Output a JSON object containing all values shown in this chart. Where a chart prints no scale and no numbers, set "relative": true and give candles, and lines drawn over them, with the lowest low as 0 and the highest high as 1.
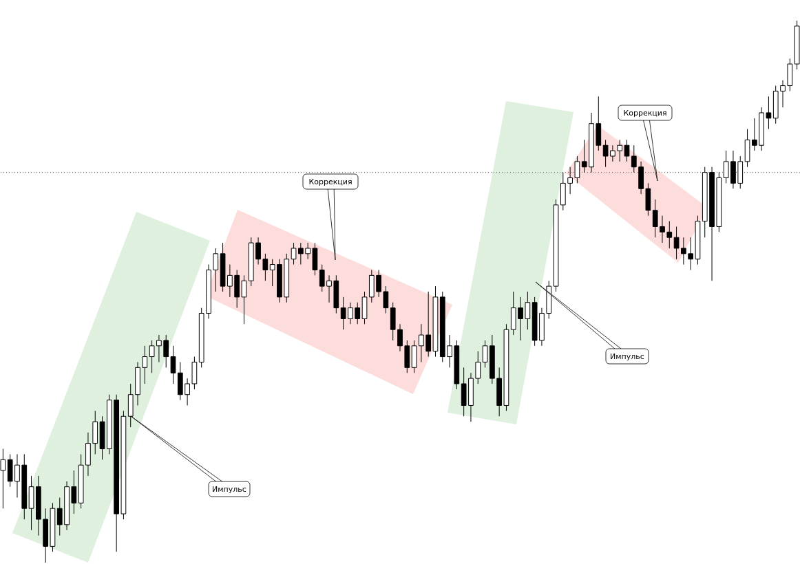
{
  "chart_data": {
    "type": "candlestick",
    "relative": true,
    "tick_labels": false,
    "categories": [
      null,
      null,
      null,
      null,
      null,
      null,
      null,
      null,
      null,
      null,
      null,
      null,
      null,
      null,
      null,
      null,
      null,
      null,
      null,
      null,
      null,
      null,
      null,
      null,
      null,
      null,
      null,
      null,
      null,
      null,
      null,
      null,
      null,
      null,
      null,
      null,
      null,
      null,
      null,
      null,
      null,
      null,
      null,
      null,
      null,
      null,
      null,
      null,
      null,
      null,
      null,
      null,
      null,
      null,
      null,
      null,
      null,
      null,
      null,
      null,
      null,
      null,
      null,
      null,
      null,
      null,
      null,
      null,
      null,
      null,
      null,
      null,
      null,
      null,
      null,
      null,
      null,
      null,
      null,
      null,
      null,
      null,
      null,
      null,
      null,
      null,
      null,
      null,
      null,
      null,
      null,
      null,
      null,
      null,
      null,
      null,
      null,
      null,
      null,
      null,
      null,
      null,
      null,
      null,
      null,
      null,
      null,
      null,
      null,
      null,
      null,
      null,
      null
    ],
    "ohlc": [
      [
        0.17,
        0.21,
        0.1,
        0.19
      ],
      [
        0.19,
        0.2,
        0.14,
        0.15
      ],
      [
        0.15,
        0.2,
        0.12,
        0.18
      ],
      [
        0.18,
        0.2,
        0.08,
        0.1
      ],
      [
        0.1,
        0.16,
        0.06,
        0.14
      ],
      [
        0.14,
        0.16,
        0.05,
        0.08
      ],
      [
        0.08,
        0.1,
        0.0,
        0.03
      ],
      [
        0.03,
        0.11,
        0.02,
        0.1
      ],
      [
        0.1,
        0.12,
        0.05,
        0.07
      ],
      [
        0.07,
        0.15,
        0.06,
        0.14
      ],
      [
        0.14,
        0.17,
        0.09,
        0.11
      ],
      [
        0.11,
        0.2,
        0.1,
        0.18
      ],
      [
        0.18,
        0.24,
        0.16,
        0.22
      ],
      [
        0.22,
        0.28,
        0.2,
        0.26
      ],
      [
        0.26,
        0.27,
        0.19,
        0.21
      ],
      [
        0.21,
        0.31,
        0.2,
        0.3
      ],
      [
        0.3,
        0.31,
        0.02,
        0.09
      ],
      [
        0.09,
        0.28,
        0.08,
        0.27
      ],
      [
        0.27,
        0.33,
        0.25,
        0.31
      ],
      [
        0.31,
        0.37,
        0.29,
        0.36
      ],
      [
        0.36,
        0.4,
        0.33,
        0.38
      ],
      [
        0.38,
        0.41,
        0.35,
        0.4
      ],
      [
        0.4,
        0.42,
        0.37,
        0.41
      ],
      [
        0.41,
        0.42,
        0.36,
        0.38
      ],
      [
        0.38,
        0.4,
        0.33,
        0.35
      ],
      [
        0.35,
        0.37,
        0.3,
        0.31
      ],
      [
        0.31,
        0.34,
        0.29,
        0.33
      ],
      [
        0.33,
        0.38,
        0.32,
        0.37
      ],
      [
        0.37,
        0.47,
        0.36,
        0.46
      ],
      [
        0.46,
        0.55,
        0.45,
        0.54
      ],
      [
        0.54,
        0.58,
        0.5,
        0.57
      ],
      [
        0.57,
        0.59,
        0.5,
        0.51
      ],
      [
        0.51,
        0.55,
        0.49,
        0.53
      ],
      [
        0.53,
        0.54,
        0.47,
        0.49
      ],
      [
        0.49,
        0.53,
        0.44,
        0.52
      ],
      [
        0.52,
        0.6,
        0.51,
        0.59
      ],
      [
        0.59,
        0.6,
        0.55,
        0.56
      ],
      [
        0.56,
        0.57,
        0.52,
        0.54
      ],
      [
        0.54,
        0.56,
        0.51,
        0.55
      ],
      [
        0.55,
        0.56,
        0.48,
        0.49
      ],
      [
        0.49,
        0.57,
        0.48,
        0.56
      ],
      [
        0.56,
        0.59,
        0.55,
        0.58
      ],
      [
        0.58,
        0.59,
        0.55,
        0.57
      ],
      [
        0.57,
        0.59,
        0.56,
        0.58
      ],
      [
        0.58,
        0.59,
        0.53,
        0.54
      ],
      [
        0.54,
        0.55,
        0.5,
        0.51
      ],
      [
        0.51,
        0.53,
        0.48,
        0.52
      ],
      [
        0.52,
        0.53,
        0.46,
        0.47
      ],
      [
        0.47,
        0.49,
        0.43,
        0.45
      ],
      [
        0.45,
        0.48,
        0.44,
        0.47
      ],
      [
        0.47,
        0.48,
        0.44,
        0.45
      ],
      [
        0.45,
        0.5,
        0.44,
        0.49
      ],
      [
        0.49,
        0.54,
        0.48,
        0.53
      ],
      [
        0.53,
        0.54,
        0.49,
        0.5
      ],
      [
        0.5,
        0.51,
        0.46,
        0.47
      ],
      [
        0.47,
        0.48,
        0.41,
        0.43
      ],
      [
        0.43,
        0.44,
        0.39,
        0.4
      ],
      [
        0.4,
        0.41,
        0.35,
        0.36
      ],
      [
        0.36,
        0.41,
        0.35,
        0.4
      ],
      [
        0.4,
        0.44,
        0.37,
        0.42
      ],
      [
        0.42,
        0.5,
        0.38,
        0.39
      ],
      [
        0.39,
        0.51,
        0.38,
        0.49
      ],
      [
        0.49,
        0.5,
        0.37,
        0.38
      ],
      [
        0.38,
        0.42,
        0.36,
        0.4
      ],
      [
        0.4,
        0.41,
        0.32,
        0.33
      ],
      [
        0.33,
        0.36,
        0.27,
        0.29
      ],
      [
        0.29,
        0.35,
        0.26,
        0.34
      ],
      [
        0.34,
        0.39,
        0.33,
        0.37
      ],
      [
        0.37,
        0.41,
        0.36,
        0.4
      ],
      [
        0.4,
        0.42,
        0.33,
        0.34
      ],
      [
        0.34,
        0.36,
        0.27,
        0.29
      ],
      [
        0.29,
        0.44,
        0.28,
        0.43
      ],
      [
        0.43,
        0.5,
        0.42,
        0.47
      ],
      [
        0.47,
        0.49,
        0.41,
        0.45
      ],
      [
        0.45,
        0.5,
        0.43,
        0.48
      ],
      [
        0.48,
        0.49,
        0.4,
        0.41
      ],
      [
        0.41,
        0.47,
        0.4,
        0.46
      ],
      [
        0.46,
        0.52,
        0.45,
        0.51
      ],
      [
        0.51,
        0.67,
        0.5,
        0.66
      ],
      [
        0.66,
        0.72,
        0.65,
        0.7
      ],
      [
        0.7,
        0.73,
        0.68,
        0.71
      ],
      [
        0.71,
        0.75,
        0.7,
        0.74
      ],
      [
        0.74,
        0.78,
        0.72,
        0.73
      ],
      [
        0.73,
        0.83,
        0.72,
        0.81
      ],
      [
        0.81,
        0.86,
        0.76,
        0.77
      ],
      [
        0.77,
        0.78,
        0.73,
        0.75
      ],
      [
        0.75,
        0.77,
        0.74,
        0.76
      ],
      [
        0.76,
        0.78,
        0.74,
        0.77
      ],
      [
        0.77,
        0.78,
        0.74,
        0.75
      ],
      [
        0.75,
        0.77,
        0.72,
        0.73
      ],
      [
        0.73,
        0.74,
        0.68,
        0.69
      ],
      [
        0.69,
        0.7,
        0.64,
        0.65
      ],
      [
        0.65,
        0.67,
        0.6,
        0.62
      ],
      [
        0.62,
        0.64,
        0.59,
        0.61
      ],
      [
        0.61,
        0.63,
        0.58,
        0.6
      ],
      [
        0.6,
        0.62,
        0.56,
        0.58
      ],
      [
        0.58,
        0.6,
        0.55,
        0.57
      ],
      [
        0.57,
        0.6,
        0.54,
        0.56
      ],
      [
        0.56,
        0.64,
        0.55,
        0.63
      ],
      [
        0.63,
        0.73,
        0.6,
        0.72
      ],
      [
        0.72,
        0.73,
        0.52,
        0.62
      ],
      [
        0.62,
        0.72,
        0.61,
        0.71
      ],
      [
        0.71,
        0.76,
        0.7,
        0.74
      ],
      [
        0.74,
        0.76,
        0.69,
        0.7
      ],
      [
        0.7,
        0.75,
        0.69,
        0.74
      ],
      [
        0.74,
        0.8,
        0.73,
        0.78
      ],
      [
        0.78,
        0.82,
        0.76,
        0.77
      ],
      [
        0.77,
        0.84,
        0.76,
        0.83
      ],
      [
        0.83,
        0.86,
        0.8,
        0.82
      ],
      [
        0.82,
        0.88,
        0.81,
        0.87
      ],
      [
        0.87,
        0.89,
        0.84,
        0.88
      ],
      [
        0.88,
        0.93,
        0.87,
        0.92
      ],
      [
        0.92,
        1.0,
        0.91,
        0.99
      ]
    ],
    "ref_lines": [
      {
        "axis": "y",
        "value": 0.72,
        "line_style": "dotted",
        "color": "#555555"
      }
    ],
    "annotations": [
      "Импульс",
      "Коррекция",
      "Импульс",
      "Коррекция"
    ]
  }
}
